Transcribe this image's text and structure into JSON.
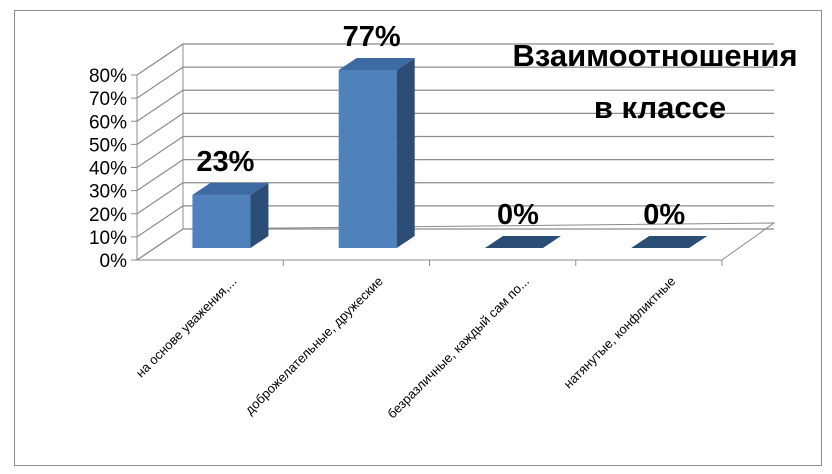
{
  "chart_data": {
    "type": "bar",
    "title": "Взаимоотношения в классе",
    "title_lines": [
      "Взаимоотношения",
      "в классе"
    ],
    "categories": [
      "на основе уважения,...",
      "доброжелательные, дружеские",
      "безразличные, каждый сам по...",
      "натянутые, конфликтные"
    ],
    "values": [
      23,
      77,
      0,
      0
    ],
    "data_labels": [
      "23%",
      "77%",
      "0%",
      "0%"
    ],
    "ytick_labels": [
      "0%",
      "10%",
      "20%",
      "30%",
      "40%",
      "50%",
      "60%",
      "70%",
      "80%"
    ],
    "ylim": [
      0,
      80
    ],
    "grid": true,
    "legend": "none",
    "bar_color": "#4f81bd",
    "bar_side_color": "#2c4d75",
    "bar_top_color": "#3d6aa3"
  }
}
